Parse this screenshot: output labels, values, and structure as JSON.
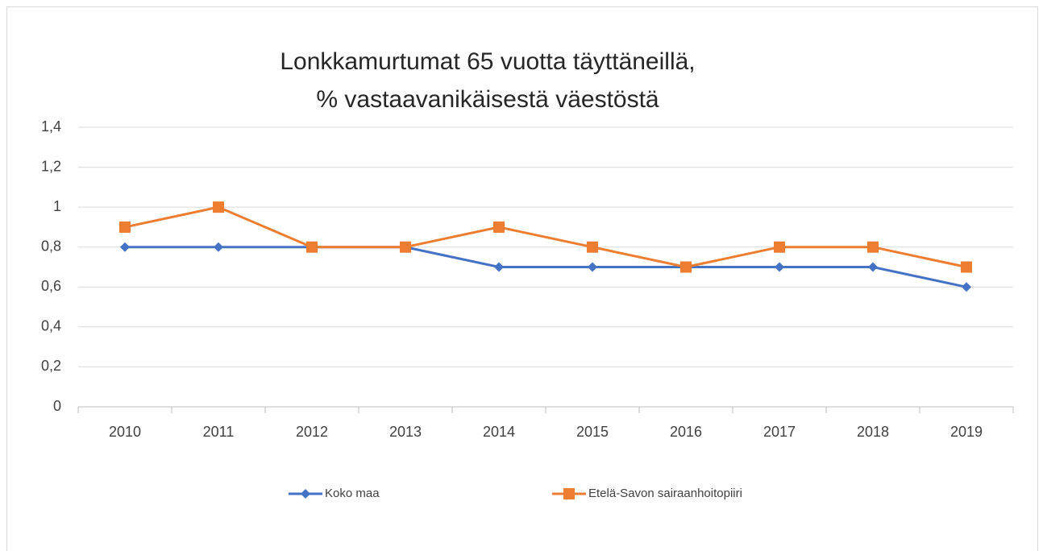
{
  "chart_data": {
    "type": "line",
    "title": [
      "Lonkkamurtumat 65 vuotta täyttäneillä,",
      "% vastaavanikäisestä väestöstä"
    ],
    "categories": [
      "2010",
      "2011",
      "2012",
      "2013",
      "2014",
      "2015",
      "2016",
      "2017",
      "2018",
      "2019"
    ],
    "series": [
      {
        "name": "Koko maa",
        "color": "#4472c4",
        "marker": "diamond",
        "values": [
          0.8,
          0.8,
          0.8,
          0.8,
          0.7,
          0.7,
          0.7,
          0.7,
          0.7,
          0.6
        ]
      },
      {
        "name": "Etelä-Savon sairaanhoitopiiri",
        "color": "#ed7d31",
        "marker": "square",
        "values": [
          0.9,
          1.0,
          0.8,
          0.8,
          0.9,
          0.8,
          0.7,
          0.8,
          0.8,
          0.7
        ]
      }
    ],
    "ylim": [
      0,
      1.4
    ],
    "yticks": [
      0,
      {
        "value": 0.2,
        "label": "0,2"
      },
      {
        "value": 0.4,
        "label": "0,4"
      },
      {
        "value": 0.6,
        "label": "0,6"
      },
      {
        "value": 0.8,
        "label": "0,8"
      },
      1,
      {
        "value": 1.2,
        "label": "1,2"
      },
      {
        "value": 1.4,
        "label": "1,4"
      }
    ],
    "grid": true,
    "legend": "bottom"
  }
}
